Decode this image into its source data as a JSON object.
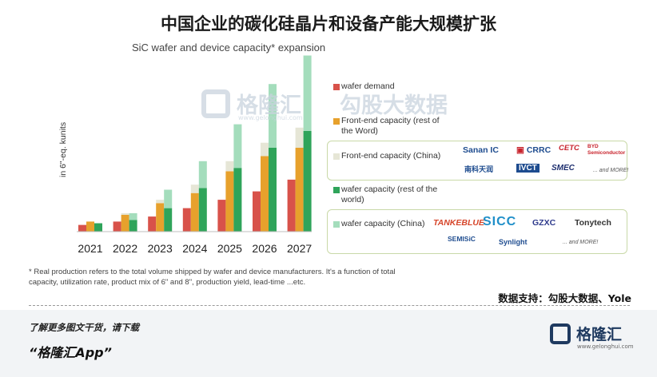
{
  "page_title": "中国企业的碳化硅晶片和设备产能大规模扩张",
  "chart_data": {
    "type": "bar",
    "title": "SiC wafer and device capacity* expansion",
    "xlabel": "",
    "ylabel": "in 6\"-eq. kunits",
    "ylim": [
      0,
      100
    ],
    "categories": [
      "2021",
      "2022",
      "2023",
      "2024",
      "2025",
      "2026",
      "2027"
    ],
    "series": [
      {
        "name": "wafer demand",
        "group": "demand",
        "color": "#d8524a",
        "values": [
          4,
          6,
          9,
          14,
          19,
          24,
          31
        ]
      },
      {
        "name": "Front-end capacity (rest of the Word)",
        "group": "front-end",
        "color": "#e7a12c",
        "values": [
          6,
          10,
          17,
          23,
          36,
          45,
          50
        ]
      },
      {
        "name": "Front-end capacity (China)",
        "group": "front-end",
        "color": "#e6e6d6",
        "values": [
          0,
          1,
          2,
          5,
          6,
          8,
          12
        ]
      },
      {
        "name": "wafer capacity (rest of the world)",
        "group": "wafer",
        "color": "#2fa45a",
        "values": [
          5,
          7,
          14,
          26,
          38,
          50,
          60
        ]
      },
      {
        "name": "wafer capacity (China)",
        "group": "wafer",
        "color": "#a4ddbc",
        "values": [
          0,
          4,
          11,
          16,
          26,
          38,
          45
        ]
      }
    ]
  },
  "legend": {
    "wafer_demand": "wafer demand",
    "front_end_row": "Front-end capacity (rest of the Word)",
    "front_end_china": "Front-end capacity (China)",
    "wafer_row": "wafer capacity (rest of the world)",
    "wafer_china": "wafer capacity (China)",
    "front_end_china_companies": [
      "Sanan IC",
      "CRRC",
      "CETC",
      "BYD Semiconductor",
      "南科天润",
      "IVCT",
      "SMEC",
      "... and MORE!"
    ],
    "wafer_china_companies": [
      "TANKEBLUE",
      "SICC",
      "GZXC",
      "Tonytech",
      "SEMISiC",
      "Synlight",
      "... and MORE!"
    ]
  },
  "watermark": {
    "name": "格隆汇",
    "url": "www.gelonghui.com",
    "brand2": "勾股大数据"
  },
  "footnote": "* Real production refers to the total volume shipped by wafer and device manufacturers. It's a function of total capacity, utilization rate, product mix of 6\" and 8\", production yield, lead-time ...etc.",
  "source": "数据支持：勾股大数据、Yole",
  "promo": {
    "line1": "了解更多图文干货，请下载",
    "line2": "“格隆汇App”"
  },
  "brand": {
    "name": "格隆汇",
    "url": "www.gelonghui.com"
  }
}
